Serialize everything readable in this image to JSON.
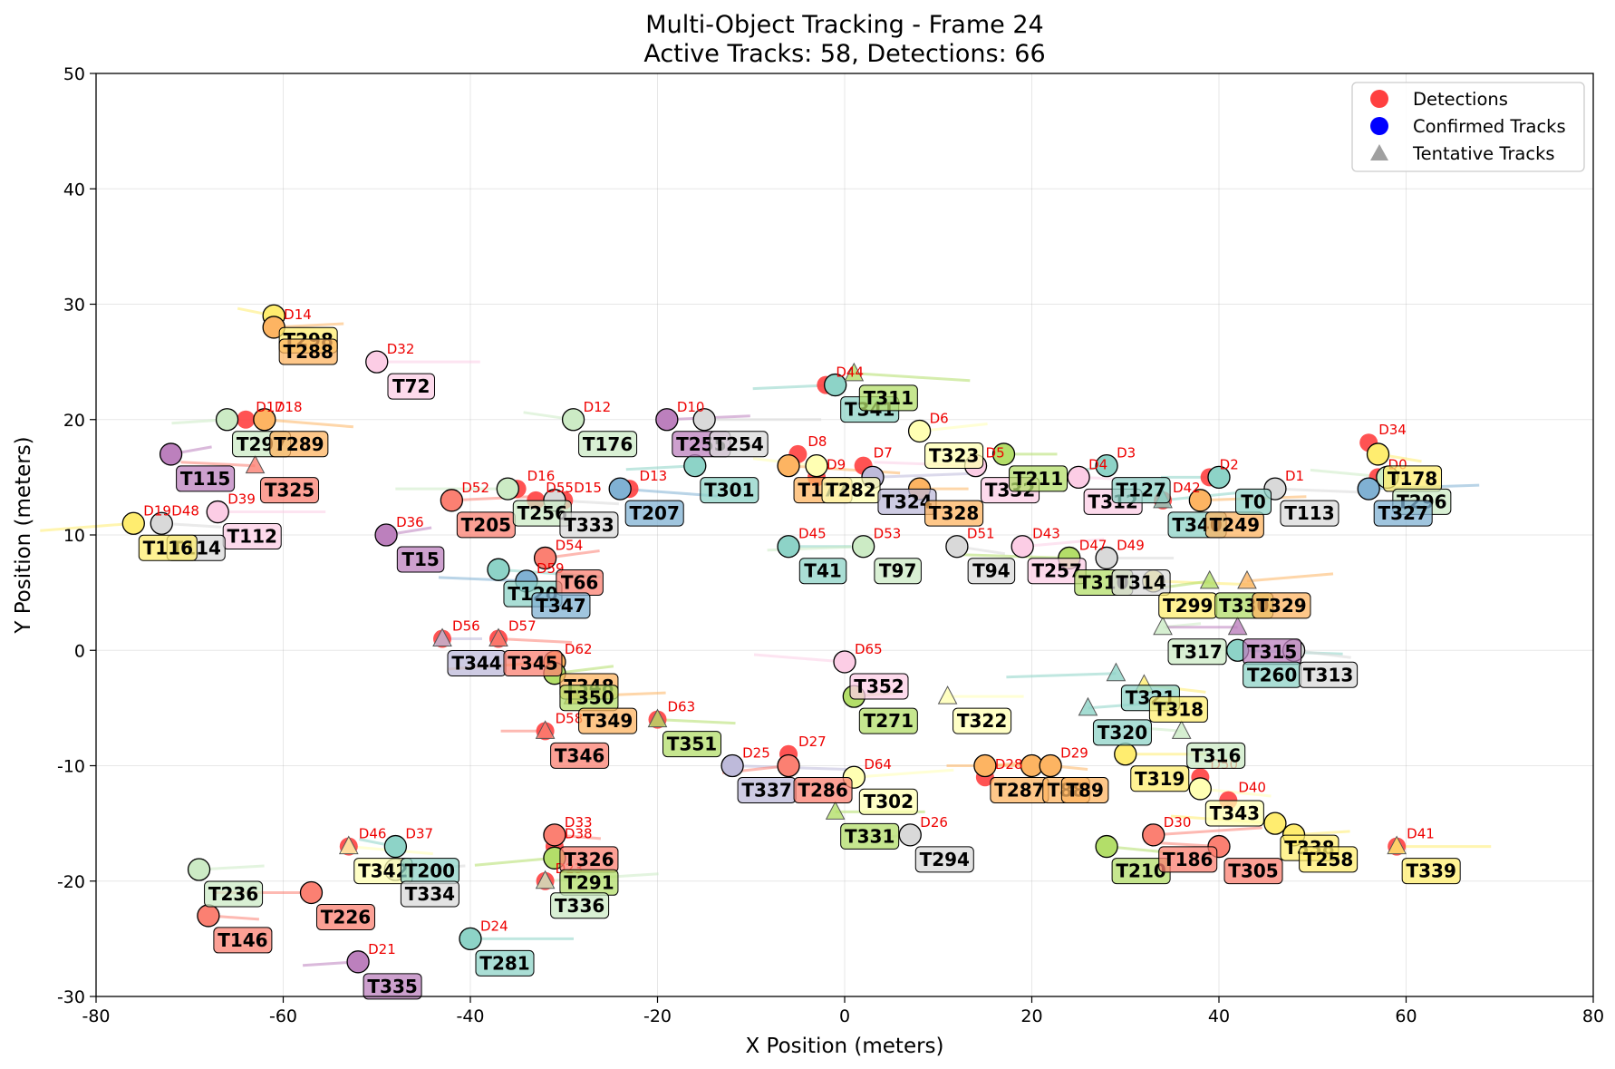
{
  "title": "Multi-Object Tracking - Frame 24",
  "subtitle": "Active Tracks: 58, Detections: 66",
  "chart_data": {
    "type": "scatter",
    "xlabel": "X Position (meters)",
    "ylabel": "Y Position (meters)",
    "xlim": [
      -80,
      80
    ],
    "ylim": [
      -30,
      50
    ],
    "xticks": [
      -80,
      -60,
      -40,
      -20,
      0,
      20,
      40,
      60,
      80
    ],
    "yticks": [
      -30,
      -20,
      -10,
      0,
      10,
      20,
      30,
      40,
      50
    ],
    "grid": true,
    "legend": {
      "position": "top-right",
      "entries": [
        {
          "label": "Detections",
          "marker": "circle",
          "color": "#ff4040"
        },
        {
          "label": "Confirmed Tracks",
          "marker": "circle",
          "color": "#0000ff"
        },
        {
          "label": "Tentative Tracks",
          "marker": "triangle",
          "color": "#a0a0a0"
        }
      ]
    },
    "detections": [
      {
        "label": "D14",
        "x": -61,
        "y": 28
      },
      {
        "label": "D32",
        "x": -50,
        "y": 25
      },
      {
        "label": "D17",
        "x": -64,
        "y": 20
      },
      {
        "label": "D18",
        "x": -62,
        "y": 20
      },
      {
        "label": "D39",
        "x": -67,
        "y": 12
      },
      {
        "label": "D19",
        "x": -76,
        "y": 11
      },
      {
        "label": "D48",
        "x": -73,
        "y": 11
      },
      {
        "label": "D36",
        "x": -49,
        "y": 10
      },
      {
        "label": "D52",
        "x": -42,
        "y": 13
      },
      {
        "label": "D16",
        "x": -35,
        "y": 14
      },
      {
        "label": "D55",
        "x": -33,
        "y": 13
      },
      {
        "label": "D15",
        "x": -30,
        "y": 13
      },
      {
        "label": "D13",
        "x": -23,
        "y": 14
      },
      {
        "label": "D12",
        "x": -29,
        "y": 20
      },
      {
        "label": "D10",
        "x": -19,
        "y": 20
      },
      {
        "label": "D54",
        "x": -32,
        "y": 8
      },
      {
        "label": "D59",
        "x": -34,
        "y": 6
      },
      {
        "label": "D56",
        "x": -43,
        "y": 1
      },
      {
        "label": "D57",
        "x": -37,
        "y": 1
      },
      {
        "label": "D62",
        "x": -31,
        "y": -1
      },
      {
        "label": "D58",
        "x": -32,
        "y": -7
      },
      {
        "label": "D63",
        "x": -20,
        "y": -6
      },
      {
        "label": "D8",
        "x": -5,
        "y": 17
      },
      {
        "label": "D9",
        "x": -3,
        "y": 15
      },
      {
        "label": "D7",
        "x": 2,
        "y": 16
      },
      {
        "label": "D44",
        "x": -2,
        "y": 23
      },
      {
        "label": "D6",
        "x": 8,
        "y": 19
      },
      {
        "label": "D5",
        "x": 14,
        "y": 16
      },
      {
        "label": "D4",
        "x": 25,
        "y": 15
      },
      {
        "label": "D3",
        "x": 28,
        "y": 16
      },
      {
        "label": "D2",
        "x": 39,
        "y": 15
      },
      {
        "label": "D42",
        "x": 34,
        "y": 13
      },
      {
        "label": "D1",
        "x": 46,
        "y": 14
      },
      {
        "label": "D34",
        "x": 56,
        "y": 18
      },
      {
        "label": "D0",
        "x": 57,
        "y": 15
      },
      {
        "label": "D45",
        "x": -6,
        "y": 9
      },
      {
        "label": "D53",
        "x": 2,
        "y": 9
      },
      {
        "label": "D51",
        "x": 12,
        "y": 9
      },
      {
        "label": "D43",
        "x": 19,
        "y": 9
      },
      {
        "label": "D47",
        "x": 24,
        "y": 8
      },
      {
        "label": "D49",
        "x": 28,
        "y": 8
      },
      {
        "label": "D65",
        "x": 0,
        "y": -1
      },
      {
        "label": "D25",
        "x": -12,
        "y": -10
      },
      {
        "label": "D27",
        "x": -6,
        "y": -9
      },
      {
        "label": "D64",
        "x": 1,
        "y": -11
      },
      {
        "label": "D28",
        "x": 15,
        "y": -11
      },
      {
        "label": "D29",
        "x": 22,
        "y": -10
      },
      {
        "label": "D50",
        "x": 38,
        "y": -11
      },
      {
        "label": "D40",
        "x": 41,
        "y": -13
      },
      {
        "label": "D26",
        "x": 7,
        "y": -16
      },
      {
        "label": "D30",
        "x": 33,
        "y": -16
      },
      {
        "label": "D41",
        "x": 59,
        "y": -17
      },
      {
        "label": "D33",
        "x": -31,
        "y": -16
      },
      {
        "label": "D38",
        "x": -31,
        "y": -17
      },
      {
        "label": "D23",
        "x": -32,
        "y": -20
      },
      {
        "label": "D46",
        "x": -53,
        "y": -17
      },
      {
        "label": "D37",
        "x": -48,
        "y": -17
      },
      {
        "label": "D24",
        "x": -40,
        "y": -25
      },
      {
        "label": "D21",
        "x": -52,
        "y": -27
      }
    ],
    "tracks": [
      {
        "id": "T298",
        "x": -61,
        "y": 29,
        "color": "#ffed6f",
        "status": "confirmed"
      },
      {
        "id": "T288",
        "x": -61,
        "y": 28,
        "color": "#fdb462",
        "status": "confirmed"
      },
      {
        "id": "T72",
        "x": -50,
        "y": 25,
        "color": "#fccde5",
        "status": "confirmed"
      },
      {
        "id": "T297",
        "x": -66,
        "y": 20,
        "color": "#ccebc5",
        "status": "confirmed"
      },
      {
        "id": "T289",
        "x": -62,
        "y": 20,
        "color": "#fdb462",
        "status": "confirmed"
      },
      {
        "id": "T115",
        "x": -72,
        "y": 17,
        "color": "#bc80bd",
        "status": "confirmed"
      },
      {
        "id": "T325",
        "x": -63,
        "y": 16,
        "color": "#fb8072",
        "status": "tentative"
      },
      {
        "id": "T112",
        "x": -67,
        "y": 12,
        "color": "#fccde5",
        "status": "confirmed"
      },
      {
        "id": "T114",
        "x": -73,
        "y": 11,
        "color": "#d9d9d9",
        "status": "confirmed"
      },
      {
        "id": "T116",
        "x": -76,
        "y": 11,
        "color": "#ffed6f",
        "status": "confirmed"
      },
      {
        "id": "T15",
        "x": -49,
        "y": 10,
        "color": "#bc80bd",
        "status": "confirmed"
      },
      {
        "id": "T205",
        "x": -42,
        "y": 13,
        "color": "#fb8072",
        "status": "confirmed"
      },
      {
        "id": "T256",
        "x": -36,
        "y": 14,
        "color": "#ccebc5",
        "status": "confirmed"
      },
      {
        "id": "T333",
        "x": -31,
        "y": 13,
        "color": "#d9d9d9",
        "status": "confirmed"
      },
      {
        "id": "T207",
        "x": -24,
        "y": 14,
        "color": "#80b1d3",
        "status": "confirmed"
      },
      {
        "id": "T176",
        "x": -29,
        "y": 20,
        "color": "#ccebc5",
        "status": "confirmed"
      },
      {
        "id": "T255",
        "x": -19,
        "y": 20,
        "color": "#bc80bd",
        "status": "confirmed"
      },
      {
        "id": "T254",
        "x": -15,
        "y": 20,
        "color": "#d9d9d9",
        "status": "confirmed"
      },
      {
        "id": "T301",
        "x": -16,
        "y": 16,
        "color": "#8dd3c7",
        "status": "confirmed"
      },
      {
        "id": "T120",
        "x": -37,
        "y": 7,
        "color": "#8dd3c7",
        "status": "confirmed"
      },
      {
        "id": "T66",
        "x": -32,
        "y": 8,
        "color": "#fb8072",
        "status": "confirmed"
      },
      {
        "id": "T347",
        "x": -34,
        "y": 6,
        "color": "#80b1d3",
        "status": "confirmed"
      },
      {
        "id": "T344",
        "x": -43,
        "y": 1,
        "color": "#bebada",
        "status": "tentative"
      },
      {
        "id": "T345",
        "x": -37,
        "y": 1,
        "color": "#fb8072",
        "status": "tentative"
      },
      {
        "id": "T348",
        "x": -31,
        "y": -1,
        "color": "#fdb462",
        "status": "confirmed"
      },
      {
        "id": "T350",
        "x": -31,
        "y": -2,
        "color": "#b3de69",
        "status": "confirmed"
      },
      {
        "id": "T349",
        "x": -29,
        "y": -4,
        "color": "#fdb462",
        "status": "tentative"
      },
      {
        "id": "T346",
        "x": -32,
        "y": -7,
        "color": "#fb8072",
        "status": "tentative"
      },
      {
        "id": "T351",
        "x": -20,
        "y": -6,
        "color": "#b3de69",
        "status": "tentative"
      },
      {
        "id": "T177",
        "x": -6,
        "y": 16,
        "color": "#fdb462",
        "status": "confirmed"
      },
      {
        "id": "T282",
        "x": -3,
        "y": 16,
        "color": "#ffffb3",
        "status": "confirmed"
      },
      {
        "id": "T324",
        "x": 3,
        "y": 15,
        "color": "#bebada",
        "status": "confirmed"
      },
      {
        "id": "T328",
        "x": 8,
        "y": 14,
        "color": "#fdb462",
        "status": "confirmed"
      },
      {
        "id": "T341",
        "x": -1,
        "y": 23,
        "color": "#8dd3c7",
        "status": "confirmed"
      },
      {
        "id": "T311",
        "x": 1,
        "y": 24,
        "color": "#b3de69",
        "status": "tentative"
      },
      {
        "id": "T323",
        "x": 8,
        "y": 19,
        "color": "#ffffb3",
        "status": "confirmed"
      },
      {
        "id": "T332",
        "x": 14,
        "y": 16,
        "color": "#fccde5",
        "status": "confirmed"
      },
      {
        "id": "T211",
        "x": 17,
        "y": 17,
        "color": "#b3de69",
        "status": "confirmed"
      },
      {
        "id": "T312",
        "x": 25,
        "y": 15,
        "color": "#fccde5",
        "status": "confirmed"
      },
      {
        "id": "T127",
        "x": 28,
        "y": 16,
        "color": "#8dd3c7",
        "status": "confirmed"
      },
      {
        "id": "T340",
        "x": 34,
        "y": 13,
        "color": "#8dd3c7",
        "status": "tentative"
      },
      {
        "id": "T249",
        "x": 38,
        "y": 13,
        "color": "#fdb462",
        "status": "confirmed"
      },
      {
        "id": "T0",
        "x": 40,
        "y": 15,
        "color": "#8dd3c7",
        "status": "confirmed"
      },
      {
        "id": "T113",
        "x": 46,
        "y": 14,
        "color": "#d9d9d9",
        "status": "confirmed"
      },
      {
        "id": "T178",
        "x": 57,
        "y": 17,
        "color": "#ffed6f",
        "status": "confirmed"
      },
      {
        "id": "T296",
        "x": 58,
        "y": 15,
        "color": "#ccebc5",
        "status": "confirmed"
      },
      {
        "id": "T327",
        "x": 56,
        "y": 14,
        "color": "#80b1d3",
        "status": "confirmed"
      },
      {
        "id": "T41",
        "x": -6,
        "y": 9,
        "color": "#8dd3c7",
        "status": "confirmed"
      },
      {
        "id": "T97",
        "x": 2,
        "y": 9,
        "color": "#ccebc5",
        "status": "confirmed"
      },
      {
        "id": "T94",
        "x": 12,
        "y": 9,
        "color": "#d9d9d9",
        "status": "confirmed"
      },
      {
        "id": "T257",
        "x": 19,
        "y": 9,
        "color": "#fccde5",
        "status": "confirmed"
      },
      {
        "id": "T310",
        "x": 24,
        "y": 8,
        "color": "#b3de69",
        "status": "confirmed"
      },
      {
        "id": "T314",
        "x": 28,
        "y": 8,
        "color": "#d9d9d9",
        "status": "confirmed"
      },
      {
        "id": "T299",
        "x": 33,
        "y": 6,
        "color": "#ffed6f",
        "status": "confirmed"
      },
      {
        "id": "T330",
        "x": 39,
        "y": 6,
        "color": "#b3de69",
        "status": "tentative"
      },
      {
        "id": "T329",
        "x": 43,
        "y": 6,
        "color": "#fdb462",
        "status": "tentative"
      },
      {
        "id": "T317",
        "x": 34,
        "y": 2,
        "color": "#ccebc5",
        "status": "tentative"
      },
      {
        "id": "T315",
        "x": 42,
        "y": 2,
        "color": "#bc80bd",
        "status": "tentative"
      },
      {
        "id": "T260",
        "x": 42,
        "y": 0,
        "color": "#8dd3c7",
        "status": "confirmed"
      },
      {
        "id": "T313",
        "x": 48,
        "y": 0,
        "color": "#d9d9d9",
        "status": "confirmed"
      },
      {
        "id": "T352",
        "x": 0,
        "y": -1,
        "color": "#fccde5",
        "status": "confirmed"
      },
      {
        "id": "T271",
        "x": 1,
        "y": -4,
        "color": "#b3de69",
        "status": "confirmed"
      },
      {
        "id": "T322",
        "x": 11,
        "y": -4,
        "color": "#ffffb3",
        "status": "tentative"
      },
      {
        "id": "T321",
        "x": 29,
        "y": -2,
        "color": "#8dd3c7",
        "status": "tentative"
      },
      {
        "id": "T318",
        "x": 32,
        "y": -3,
        "color": "#ffed6f",
        "status": "tentative"
      },
      {
        "id": "T320",
        "x": 26,
        "y": -5,
        "color": "#8dd3c7",
        "status": "tentative"
      },
      {
        "id": "T316",
        "x": 36,
        "y": -7,
        "color": "#ccebc5",
        "status": "tentative"
      },
      {
        "id": "T319",
        "x": 30,
        "y": -9,
        "color": "#ffed6f",
        "status": "confirmed"
      },
      {
        "id": "T337",
        "x": -12,
        "y": -10,
        "color": "#bebada",
        "status": "confirmed"
      },
      {
        "id": "T286",
        "x": -6,
        "y": -10,
        "color": "#fb8072",
        "status": "confirmed"
      },
      {
        "id": "T302",
        "x": 1,
        "y": -11,
        "color": "#ffffb3",
        "status": "confirmed"
      },
      {
        "id": "T287",
        "x": 15,
        "y": -10,
        "color": "#fdb462",
        "status": "confirmed"
      },
      {
        "id": "T88",
        "x": 20,
        "y": -10,
        "color": "#fdb462",
        "status": "confirmed"
      },
      {
        "id": "T89",
        "x": 22,
        "y": -10,
        "color": "#fdb462",
        "status": "confirmed"
      },
      {
        "id": "T343",
        "x": 38,
        "y": -12,
        "color": "#ffffb3",
        "status": "confirmed"
      },
      {
        "id": "T338",
        "x": 46,
        "y": -15,
        "color": "#ffed6f",
        "status": "confirmed"
      },
      {
        "id": "T258",
        "x": 48,
        "y": -16,
        "color": "#ffed6f",
        "status": "confirmed"
      },
      {
        "id": "T331",
        "x": -1,
        "y": -14,
        "color": "#b3de69",
        "status": "tentative"
      },
      {
        "id": "T294",
        "x": 7,
        "y": -16,
        "color": "#d9d9d9",
        "status": "confirmed"
      },
      {
        "id": "T210",
        "x": 28,
        "y": -17,
        "color": "#b3de69",
        "status": "confirmed"
      },
      {
        "id": "T186",
        "x": 33,
        "y": -16,
        "color": "#fb8072",
        "status": "confirmed"
      },
      {
        "id": "T305",
        "x": 40,
        "y": -17,
        "color": "#fb8072",
        "status": "confirmed"
      },
      {
        "id": "T339",
        "x": 59,
        "y": -17,
        "color": "#ffed6f",
        "status": "tentative"
      },
      {
        "id": "T326",
        "x": -31,
        "y": -16,
        "color": "#fb8072",
        "status": "confirmed"
      },
      {
        "id": "T291",
        "x": -31,
        "y": -18,
        "color": "#b3de69",
        "status": "confirmed"
      },
      {
        "id": "T336",
        "x": -32,
        "y": -20,
        "color": "#ccebc5",
        "status": "tentative"
      },
      {
        "id": "T236",
        "x": -69,
        "y": -19,
        "color": "#ccebc5",
        "status": "confirmed"
      },
      {
        "id": "T226",
        "x": -57,
        "y": -21,
        "color": "#fb8072",
        "status": "confirmed"
      },
      {
        "id": "T146",
        "x": -68,
        "y": -23,
        "color": "#fb8072",
        "status": "confirmed"
      },
      {
        "id": "T342",
        "x": -53,
        "y": -17,
        "color": "#ffffb3",
        "status": "tentative"
      },
      {
        "id": "T200",
        "x": -48,
        "y": -17,
        "color": "#8dd3c7",
        "status": "confirmed"
      },
      {
        "id": "T334",
        "x": -48,
        "y": -19,
        "color": "#d9d9d9",
        "status": "confirmed"
      },
      {
        "id": "T281",
        "x": -40,
        "y": -25,
        "color": "#8dd3c7",
        "status": "confirmed"
      },
      {
        "id": "T335",
        "x": -52,
        "y": -27,
        "color": "#bc80bd",
        "status": "confirmed"
      }
    ]
  }
}
